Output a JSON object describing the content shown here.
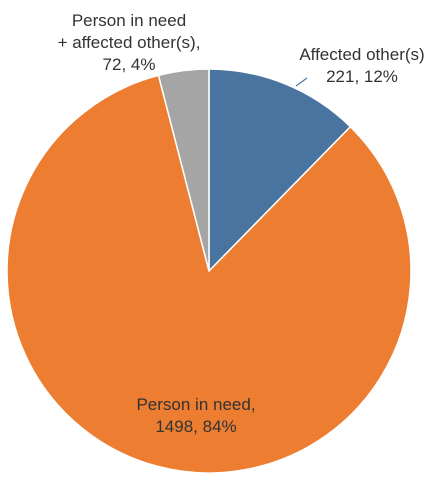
{
  "chart_data": {
    "type": "pie",
    "title": "",
    "start_angle_deg": 0,
    "direction": "clockwise",
    "slices": [
      {
        "label": "Affected other(s)",
        "value": 221,
        "percent": "12%",
        "color": "#4a74a0",
        "label_lines": [
          "Affected other(s)",
          "221, 12%"
        ]
      },
      {
        "label": "Person in need",
        "value": 1498,
        "percent": "84%",
        "color": "#ed7d31",
        "label_lines": [
          "Person in need,",
          "1498, 84%"
        ]
      },
      {
        "label": "Person in need + affected other(s)",
        "value": 72,
        "percent": "4%",
        "color": "#a5a5a5",
        "label_lines": [
          "Person in need",
          "+ affected other(s),",
          "72, 4%"
        ]
      }
    ],
    "label_text_color": "#333333",
    "leader_line_color": "#4a74a0",
    "slice_border_color": "#ffffff"
  }
}
